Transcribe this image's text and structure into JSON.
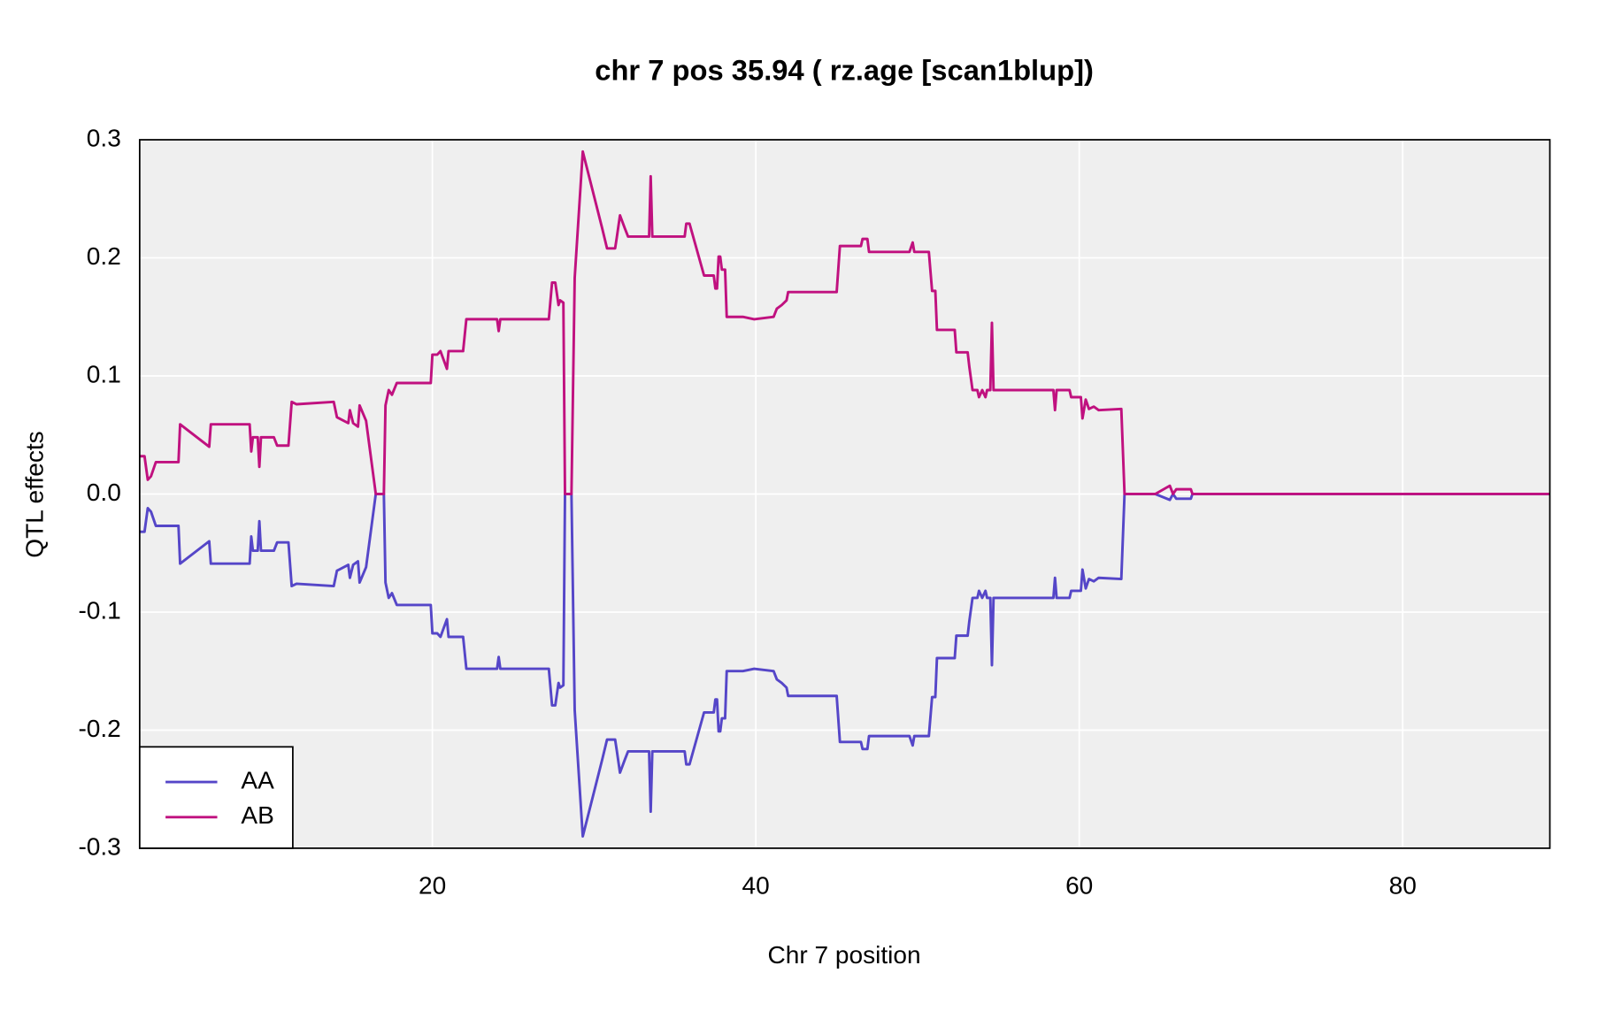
{
  "chart_data": {
    "type": "line",
    "title": "chr 7 pos 35.94 ( rz.age  [scan1blup])",
    "x_label": "Chr 7 position",
    "y_label": "QTL effects",
    "xlim": [
      1.9,
      89.1
    ],
    "ylim": [
      -0.3,
      0.3
    ],
    "xticks": [
      20,
      40,
      60,
      80
    ],
    "yticks": [
      -0.3,
      -0.2,
      -0.1,
      {
        "value": 0,
        "label": "0.0"
      },
      0.1,
      0.2,
      0.3
    ],
    "grid": true,
    "legend_position": "bottom-left",
    "x": [
      1.9,
      2.2,
      2.4,
      2.6,
      2.9,
      4.3,
      4.4,
      6.2,
      6.3,
      8.7,
      8.8,
      8.9,
      9.2,
      9.3,
      9.4,
      10.2,
      10.4,
      11.1,
      11.3,
      11.6,
      13.9,
      14.1,
      14.8,
      14.9,
      15.1,
      15.4,
      15.5,
      15.9,
      16.5,
      17.0,
      17.1,
      17.3,
      17.5,
      17.8,
      19.9,
      20.0,
      20.3,
      20.5,
      20.9,
      21.0,
      21.9,
      22.1,
      24.0,
      24.1,
      24.2,
      27.2,
      27.4,
      27.6,
      27.8,
      27.9,
      28.1,
      28.2,
      28.6,
      28.8,
      29.3,
      30.5,
      30.8,
      31.3,
      31.4,
      31.6,
      31.9,
      32.1,
      33.4,
      33.5,
      33.6,
      35.6,
      35.7,
      35.9,
      36.8,
      37.4,
      37.5,
      37.6,
      37.7,
      37.8,
      37.9,
      38.1,
      38.2,
      39.2,
      39.9,
      41.1,
      41.3,
      41.6,
      41.9,
      42.0,
      45.0,
      45.2,
      46.5,
      46.6,
      46.9,
      47.0,
      49.5,
      49.7,
      49.8,
      50.7,
      50.9,
      51.1,
      51.2,
      52.3,
      52.4,
      53.1,
      53.2,
      53.4,
      53.7,
      53.8,
      54.0,
      54.2,
      54.3,
      54.5,
      54.6,
      54.7,
      58.4,
      58.5,
      58.6,
      59.4,
      59.5,
      60.1,
      60.2,
      60.4,
      60.6,
      60.9,
      61.2,
      62.6,
      62.8,
      64.7,
      65.6,
      65.8,
      66.0,
      66.9,
      67.0,
      89.1
    ],
    "series": [
      {
        "name": "AA",
        "color": "#5546c8",
        "values": [
          -0.032,
          -0.032,
          -0.012,
          -0.015,
          -0.027,
          -0.027,
          -0.059,
          -0.04,
          -0.059,
          -0.059,
          -0.036,
          -0.048,
          -0.048,
          -0.023,
          -0.048,
          -0.048,
          -0.041,
          -0.041,
          -0.078,
          -0.076,
          -0.078,
          -0.065,
          -0.06,
          -0.071,
          -0.06,
          -0.057,
          -0.075,
          -0.062,
          0.0,
          0.0,
          -0.075,
          -0.088,
          -0.084,
          -0.094,
          -0.094,
          -0.118,
          -0.118,
          -0.121,
          -0.106,
          -0.121,
          -0.121,
          -0.148,
          -0.148,
          -0.138,
          -0.148,
          -0.148,
          -0.179,
          -0.179,
          -0.16,
          -0.164,
          -0.162,
          0.0,
          0.0,
          -0.183,
          -0.29,
          -0.225,
          -0.208,
          -0.208,
          -0.217,
          -0.236,
          -0.225,
          -0.218,
          -0.218,
          -0.269,
          -0.218,
          -0.218,
          -0.229,
          -0.229,
          -0.185,
          -0.185,
          -0.174,
          -0.174,
          -0.201,
          -0.201,
          -0.19,
          -0.19,
          -0.15,
          -0.15,
          -0.148,
          -0.15,
          -0.157,
          -0.16,
          -0.164,
          -0.171,
          -0.171,
          -0.21,
          -0.21,
          -0.216,
          -0.216,
          -0.205,
          -0.205,
          -0.213,
          -0.205,
          -0.205,
          -0.172,
          -0.172,
          -0.139,
          -0.139,
          -0.12,
          -0.12,
          -0.108,
          -0.088,
          -0.088,
          -0.082,
          -0.088,
          -0.082,
          -0.088,
          -0.088,
          -0.145,
          -0.088,
          -0.088,
          -0.071,
          -0.088,
          -0.088,
          -0.082,
          -0.082,
          -0.064,
          -0.08,
          -0.072,
          -0.074,
          -0.071,
          -0.072,
          0.0,
          0.0,
          -0.005,
          0.0,
          -0.004,
          -0.004,
          0.0,
          0.0
        ]
      },
      {
        "name": "AB",
        "color": "#c0117f",
        "values": [
          0.032,
          0.032,
          0.012,
          0.015,
          0.027,
          0.027,
          0.059,
          0.04,
          0.059,
          0.059,
          0.036,
          0.048,
          0.048,
          0.023,
          0.048,
          0.048,
          0.041,
          0.041,
          0.078,
          0.076,
          0.078,
          0.065,
          0.06,
          0.071,
          0.06,
          0.057,
          0.075,
          0.062,
          0.0,
          0.0,
          0.075,
          0.088,
          0.084,
          0.094,
          0.094,
          0.118,
          0.118,
          0.121,
          0.106,
          0.121,
          0.121,
          0.148,
          0.148,
          0.138,
          0.148,
          0.148,
          0.179,
          0.179,
          0.16,
          0.164,
          0.162,
          0.0,
          0.0,
          0.183,
          0.29,
          0.225,
          0.208,
          0.208,
          0.217,
          0.236,
          0.225,
          0.218,
          0.218,
          0.269,
          0.218,
          0.218,
          0.229,
          0.229,
          0.185,
          0.185,
          0.174,
          0.174,
          0.201,
          0.201,
          0.19,
          0.19,
          0.15,
          0.15,
          0.148,
          0.15,
          0.157,
          0.16,
          0.164,
          0.171,
          0.171,
          0.21,
          0.21,
          0.216,
          0.216,
          0.205,
          0.205,
          0.213,
          0.205,
          0.205,
          0.172,
          0.172,
          0.139,
          0.139,
          0.12,
          0.12,
          0.108,
          0.088,
          0.088,
          0.082,
          0.088,
          0.082,
          0.088,
          0.088,
          0.145,
          0.088,
          0.088,
          0.071,
          0.088,
          0.088,
          0.082,
          0.082,
          0.064,
          0.08,
          0.072,
          0.074,
          0.071,
          0.072,
          0.0,
          0.0,
          0.007,
          0.0,
          0.004,
          0.004,
          0.0,
          0.0
        ]
      }
    ]
  }
}
